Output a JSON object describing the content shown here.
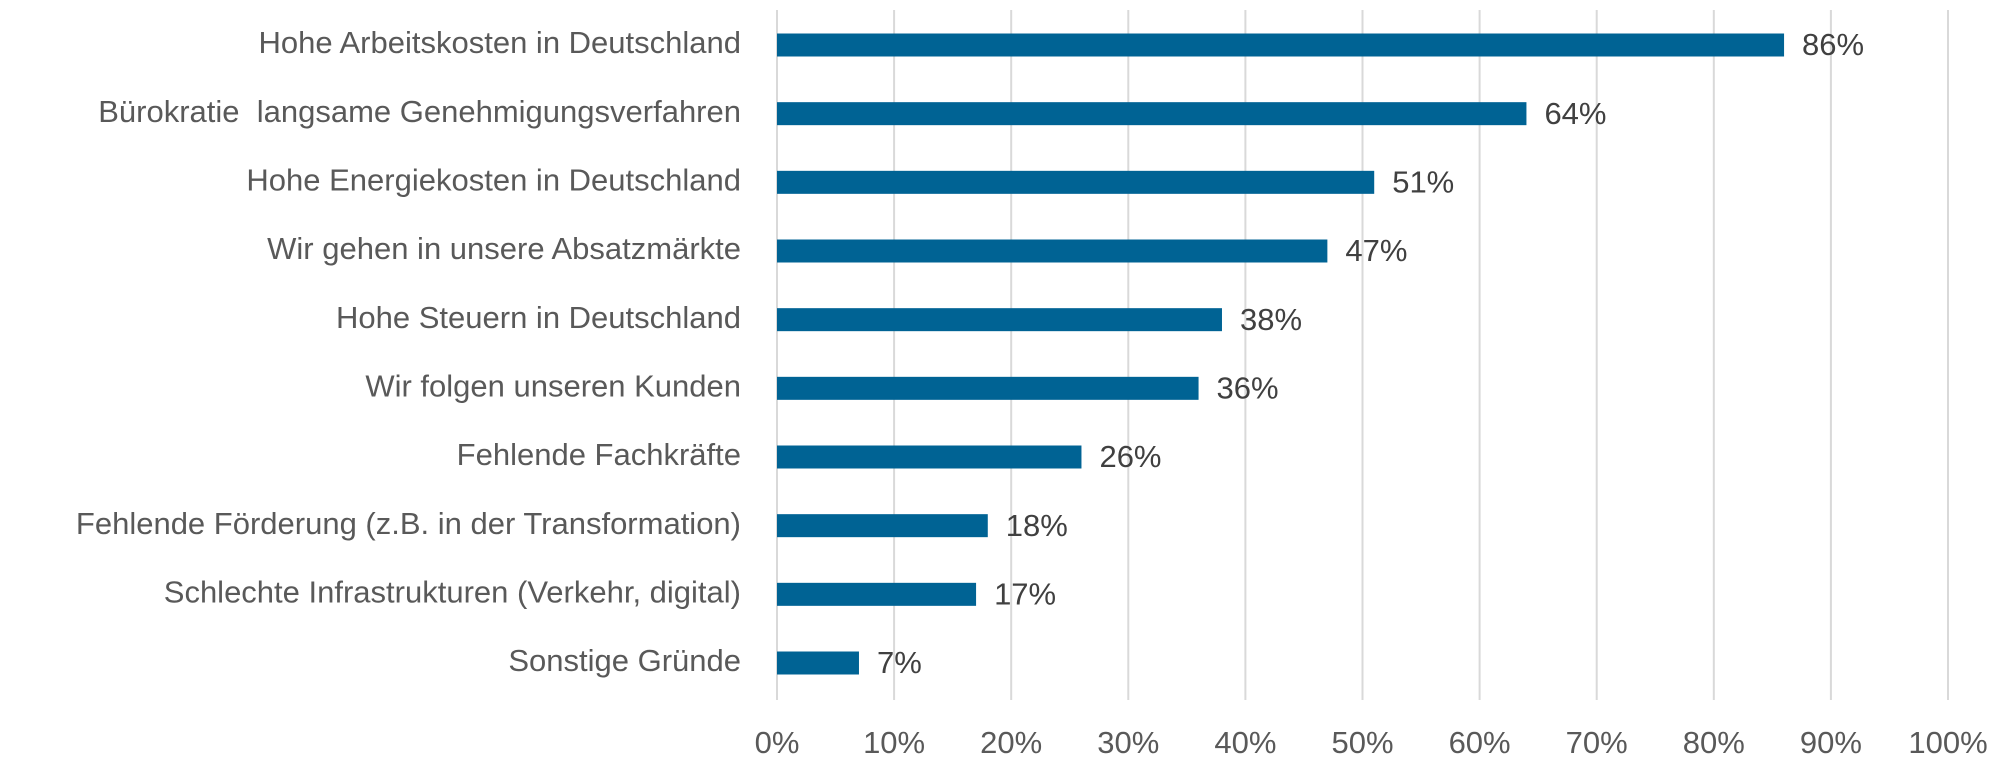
{
  "chart_data": {
    "type": "hbar",
    "categories": [
      "Hohe Arbeitskosten in Deutschland",
      "Bürokratie  langsame Genehmigungsverfahren",
      "Hohe Energiekosten in Deutschland",
      "Wir gehen in unsere Absatzmärkte",
      "Hohe Steuern in Deutschland",
      "Wir folgen unseren Kunden",
      "Fehlende Fachkräfte",
      "Fehlende Förderung (z.B. in der Transformation)",
      "Schlechte Infrastrukturen (Verkehr, digital)",
      "Sonstige Gründe"
    ],
    "values": [
      86,
      64,
      51,
      47,
      38,
      36,
      26,
      18,
      17,
      7
    ],
    "value_labels": [
      "86%",
      "64%",
      "51%",
      "47%",
      "38%",
      "36%",
      "26%",
      "18%",
      "17%",
      "7%"
    ],
    "color": "#006394",
    "xlim": [
      0,
      100
    ],
    "xticks": [
      {
        "value": 0,
        "label": "0%"
      },
      {
        "value": 10,
        "label": "10%"
      },
      {
        "value": 20,
        "label": "20%"
      },
      {
        "value": 30,
        "label": "30%"
      },
      {
        "value": 40,
        "label": "40%"
      },
      {
        "value": 50,
        "label": "50%"
      },
      {
        "value": 60,
        "label": "60%"
      },
      {
        "value": 70,
        "label": "70%"
      },
      {
        "value": 80,
        "label": "80%"
      },
      {
        "value": 90,
        "label": "90%"
      },
      {
        "value": 100,
        "label": "100%"
      }
    ],
    "grid": true
  }
}
